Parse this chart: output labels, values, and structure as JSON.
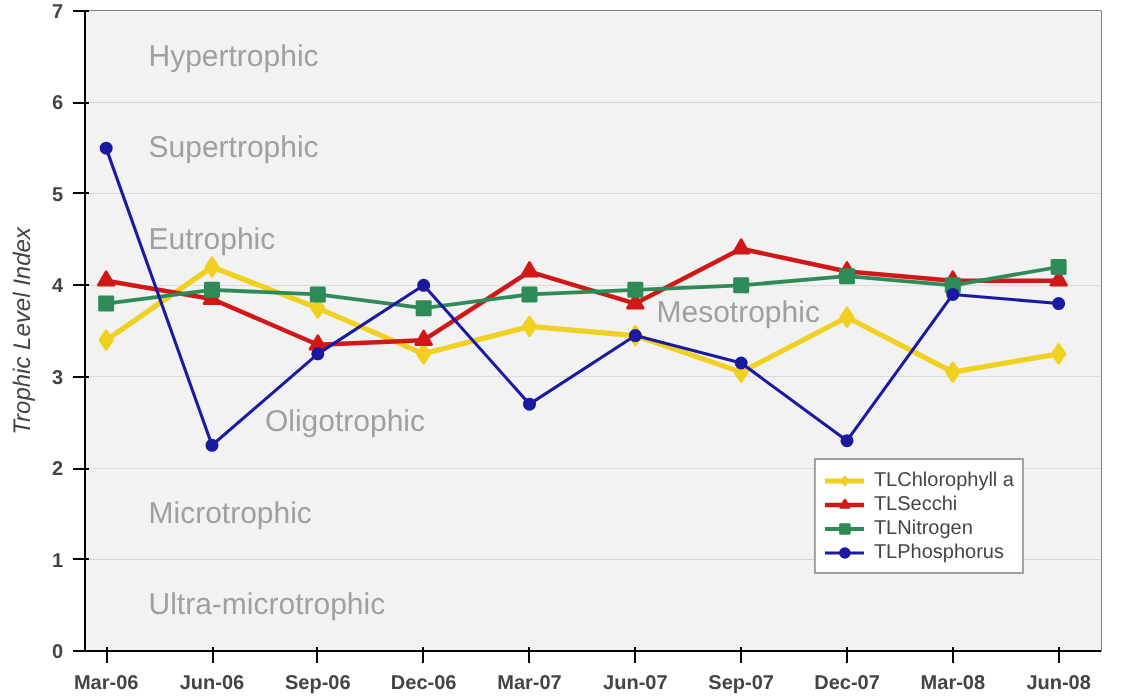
{
  "chart_data": {
    "type": "line",
    "ylabel": "Trophic Level Index",
    "categories": [
      "Mar-06",
      "Jun-06",
      "Sep-06",
      "Dec-06",
      "Mar-07",
      "Jun-07",
      "Sep-07",
      "Dec-07",
      "Mar-08",
      "Jun-08"
    ],
    "series": [
      {
        "name": "TLChlorophyll a",
        "color": "#f0d020",
        "marker": "diamond",
        "values": [
          3.4,
          4.2,
          3.75,
          3.25,
          3.55,
          3.45,
          3.05,
          3.65,
          3.05,
          3.25
        ]
      },
      {
        "name": "TLSecchi",
        "color": "#d01818",
        "marker": "triangle",
        "values": [
          4.05,
          3.85,
          3.35,
          3.4,
          4.15,
          3.8,
          4.4,
          4.15,
          4.05,
          4.05
        ]
      },
      {
        "name": "TLNitrogen",
        "color": "#2e8b57",
        "marker": "square",
        "values": [
          3.8,
          3.95,
          3.9,
          3.75,
          3.9,
          3.95,
          4.0,
          4.1,
          4.0,
          4.2
        ]
      },
      {
        "name": "TLPhosphorus",
        "color": "#1a1aa0",
        "marker": "circle",
        "values": [
          5.5,
          2.25,
          3.25,
          4.0,
          2.7,
          3.45,
          3.15,
          2.3,
          3.9,
          3.8
        ]
      }
    ],
    "ylim": [
      0,
      7
    ],
    "yticks": [
      0,
      1,
      2,
      3,
      4,
      5,
      6,
      7
    ],
    "grid": "y",
    "legend": "bottom right",
    "bands": [
      {
        "axis": "y",
        "from": 0,
        "to": 1,
        "label": "Ultra-microtrophic",
        "color": "#f2f2f2"
      },
      {
        "axis": "y",
        "from": 1,
        "to": 2,
        "label": "Microtrophic",
        "color": "#f2f2f2"
      },
      {
        "axis": "y",
        "from": 2,
        "to": 3,
        "label": "Oligotrophic",
        "color": "#f2f2f2"
      },
      {
        "axis": "y",
        "from": 3,
        "to": 4,
        "label": "Mesotrophic",
        "color": "#f2f2f2"
      },
      {
        "axis": "y",
        "from": 4,
        "to": 5,
        "label": "Eutrophic",
        "color": "#f2f2f2"
      },
      {
        "axis": "y",
        "from": 5,
        "to": 6,
        "label": "Supertrophic",
        "color": "#f2f2f2"
      },
      {
        "axis": "y",
        "from": 6,
        "to": 7,
        "label": "Hypertrophic",
        "color": "#f2f2f2"
      }
    ]
  }
}
